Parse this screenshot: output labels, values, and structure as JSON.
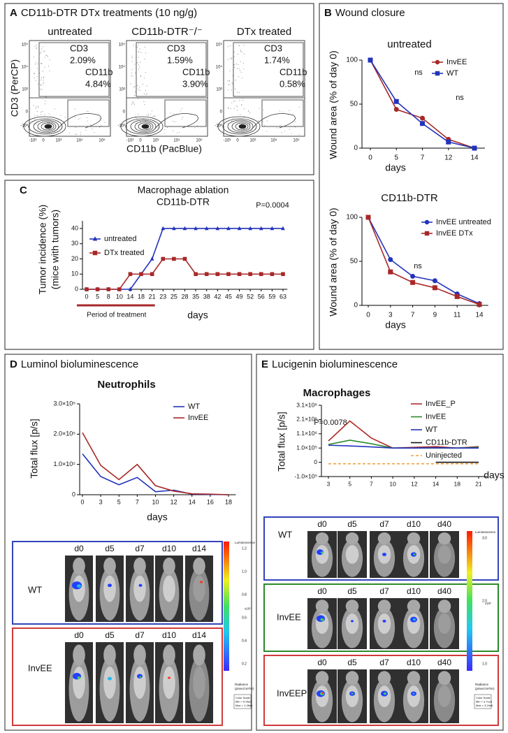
{
  "panels": [
    {
      "letter": "A",
      "title": "CD11b-DTR DTx treatments (10 ng/g)"
    },
    {
      "letter": "B",
      "title": "Wound closure"
    },
    {
      "letter": "C"
    },
    {
      "letter": "D",
      "title": "Luminol bioluminescence"
    },
    {
      "letter": "E",
      "title": "Lucigenin bioluminescence"
    }
  ],
  "flow": {
    "x_label": "CD11b (PacBlue)",
    "y_label": "CD3 (PerCP)",
    "y_ticks": [
      "10⁵",
      "10⁴",
      "10³",
      "0",
      "-10³"
    ],
    "x_ticks": [
      "-10³",
      "0",
      "10³",
      "10⁴",
      "10⁵"
    ],
    "plots": [
      {
        "title": "untreated",
        "gates": [
          {
            "name": "CD3",
            "percent": "2.09%"
          },
          {
            "name": "CD11b",
            "percent": "4.84%"
          }
        ]
      },
      {
        "title": "CD11b-DTR⁻/⁻",
        "gates": [
          {
            "name": "CD3",
            "percent": "1.59%"
          },
          {
            "name": "CD11b",
            "percent": "3.90%"
          }
        ]
      },
      {
        "title": "DTx treated",
        "gates": [
          {
            "name": "CD3",
            "percent": "1.74%"
          },
          {
            "name": "CD11b",
            "percent": "0.58%"
          }
        ]
      }
    ]
  },
  "chart_data": [
    {
      "type": "line",
      "title": "untreated",
      "categories": [
        "0",
        "5",
        "7",
        "12",
        "14"
      ],
      "xlabel": "days",
      "ylabel": "Wound area (% of day 0)",
      "ylim": [
        0,
        100
      ],
      "yticks": [
        0,
        50,
        100
      ],
      "annotations": [
        "ns",
        "ns"
      ],
      "series": [
        {
          "name": "InvEE",
          "color": "#a82828",
          "marker": "circle",
          "values": [
            100,
            44,
            34,
            10,
            0
          ]
        },
        {
          "name": "WT",
          "color": "#2233bb",
          "marker": "square",
          "values": [
            100,
            53,
            28,
            7,
            0
          ]
        }
      ]
    },
    {
      "type": "line",
      "title": "CD11b-DTR",
      "categories": [
        "0",
        "3",
        "7",
        "9",
        "11",
        "14"
      ],
      "xlabel": "days",
      "ylabel": "Wound area (% of day 0)",
      "ylim": [
        0,
        100
      ],
      "yticks": [
        0,
        50,
        100
      ],
      "annotations": [
        "ns"
      ],
      "series": [
        {
          "name": "InvEE untreated",
          "color": "#2233bb",
          "marker": "circle",
          "values": [
            100,
            52,
            33,
            28,
            13,
            2
          ]
        },
        {
          "name": "InvEE DTx",
          "color": "#a82828",
          "marker": "square",
          "values": [
            100,
            38,
            26,
            20,
            10,
            1
          ]
        }
      ]
    },
    {
      "type": "line",
      "title": [
        "Macrophage ablation",
        "CD11b-DTR"
      ],
      "categories": [
        "0",
        "5",
        "8",
        "10",
        "14",
        "18",
        "21",
        "23",
        "25",
        "28",
        "35",
        "38",
        "42",
        "45",
        "49",
        "52",
        "56",
        "59",
        "63"
      ],
      "xlabel": "days",
      "ylabel": [
        "Tumor incidence (%)",
        "(mice with tumors)"
      ],
      "ylim": [
        0,
        45
      ],
      "yticks": [
        0,
        10,
        20,
        30,
        40
      ],
      "annotations": [
        "P=0.0004"
      ],
      "period_label": "Period of treatment",
      "series": [
        {
          "name": "untreated",
          "color": "#2233bb",
          "marker": "triangle",
          "values": [
            0,
            0,
            0,
            0,
            0,
            10,
            20,
            40,
            40,
            40,
            40,
            40,
            40,
            40,
            40,
            40,
            40,
            40,
            40
          ]
        },
        {
          "name": "DTx treated",
          "color": "#a82828",
          "marker": "square",
          "values": [
            0,
            0,
            0,
            0,
            10,
            10,
            10,
            20,
            20,
            20,
            10,
            10,
            10,
            10,
            10,
            10,
            10,
            10,
            10
          ]
        }
      ]
    },
    {
      "type": "line",
      "title": "Neutrophils",
      "categories": [
        "0",
        "3",
        "5",
        "7",
        "10",
        "12",
        "14",
        "16",
        "18"
      ],
      "xlabel": "days",
      "ylabel": "Total flux [p/s]",
      "ylim": [
        0,
        300000
      ],
      "yticks": [
        0,
        {
          "value": 100000,
          "label": "1.0×10⁵"
        },
        {
          "value": 200000,
          "label": "2.0×10⁵"
        },
        {
          "value": 300000,
          "label": "3.0×10⁵"
        }
      ],
      "annotations": [],
      "series": [
        {
          "name": "WT",
          "color": "#2233bb",
          "marker": "none",
          "values": [
            135000,
            60000,
            33000,
            57000,
            10000,
            15000,
            2000,
            1000,
            0
          ]
        },
        {
          "name": "InvEE",
          "color": "#a82828",
          "marker": "none",
          "values": [
            205000,
            97000,
            50000,
            100000,
            30000,
            12000,
            3000,
            2000,
            0
          ]
        }
      ]
    },
    {
      "type": "line",
      "title": "Macrophages",
      "categories": [
        "3",
        "5",
        "7",
        "10",
        "12",
        "14",
        "18",
        "21"
      ],
      "xlabel": "days",
      "ylabel": "Total flux [p/s]",
      "yscale": "broken",
      "ylim": [
        -100000,
        3100000
      ],
      "yticks": [
        {
          "value": -100000,
          "label": "-1.0×10⁵"
        },
        0,
        {
          "value": 100000,
          "label": "1.0×10⁵"
        },
        {
          "value": 1100000,
          "label": "1.1×10⁶"
        },
        {
          "value": 2100000,
          "label": "2.1×10⁶"
        },
        {
          "value": 3100000,
          "label": "3.1×10⁶"
        }
      ],
      "annotations": [
        "P=0.0078"
      ],
      "series": [
        {
          "name": "InvEE_P",
          "color": "#b02a2a",
          "marker": "none",
          "values": [
            600000,
            2000000,
            800000,
            100000,
            150000,
            200000,
            100000,
            200000
          ]
        },
        {
          "name": "InvEE",
          "color": "#2a8a2a",
          "marker": "none",
          "values": [
            350000,
            650000,
            400000,
            100000,
            100000,
            100000,
            100000,
            150000
          ]
        },
        {
          "name": "WT",
          "color": "#2233bb",
          "marker": "none",
          "values": [
            300000,
            250000,
            180000,
            100000,
            100000,
            120000,
            100000,
            100000
          ]
        },
        {
          "name": "CD11b-DTR",
          "color": "#111111",
          "marker": "none",
          "values": [
            null,
            null,
            null,
            null,
            null,
            0,
            0,
            0
          ]
        },
        {
          "name": "Uninjected",
          "color": "#f0a040",
          "marker": "none",
          "dash": true,
          "values": [
            -10000,
            -10000,
            -10000,
            -10000,
            -10000,
            -10000,
            -10000,
            -10000
          ]
        }
      ]
    }
  ],
  "imaging": {
    "luminol": {
      "days": [
        "d0",
        "d5",
        "d7",
        "d10",
        "d14"
      ],
      "rows": [
        {
          "label": "WT",
          "color": "#3344bb"
        },
        {
          "label": "InvEE",
          "color": "#d03a3a"
        }
      ],
      "colorbar": {
        "title": "Luminescence",
        "ticks": [
          "1.2",
          "1.0",
          "0.8",
          "0.6",
          "0.4",
          "0.2"
        ],
        "exponent": "x10⁵",
        "unit": [
          "Radiance",
          "(p/sec/cm²/sr)"
        ],
        "scale": [
          "Color Scale",
          "Min = 5.95e3",
          "Max = 1.28e5"
        ]
      }
    },
    "lucigenin": {
      "days": [
        "d0",
        "d5",
        "d7",
        "d10",
        "d40"
      ],
      "rows": [
        {
          "label": "WT",
          "color": "#3344bb"
        },
        {
          "label": "InvEE",
          "color": "#2a8a2a"
        },
        {
          "label": "InvEEP",
          "color": "#d03a3a"
        }
      ],
      "colorbar": {
        "title": "Luminescence",
        "ticks": [
          "3.0",
          "2.0",
          "1.0"
        ],
        "exponent": "x10⁶",
        "unit": [
          "Radiance",
          "(p/sec/cm²/sr)"
        ],
        "scale": [
          "Color Scale",
          "Min = 3.71e5",
          "Max = 3.24e6"
        ]
      }
    }
  }
}
